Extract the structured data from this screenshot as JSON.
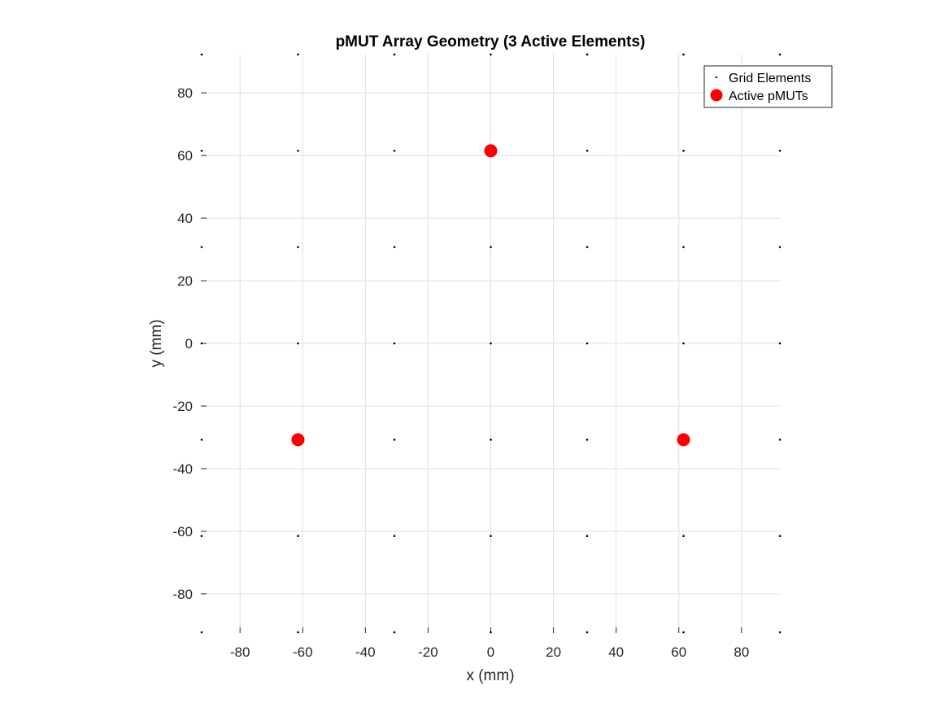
{
  "chart_data": {
    "type": "scatter",
    "title": "pMUT Array Geometry (3 Active Elements)",
    "xlabel": "x (mm)",
    "ylabel": "y (mm)",
    "xlim": [
      -92.5,
      92.5
    ],
    "ylim": [
      -92.5,
      92.5
    ],
    "xticks": [
      -80,
      -60,
      -40,
      -20,
      0,
      20,
      40,
      60,
      80
    ],
    "yticks": [
      -80,
      -60,
      -40,
      -20,
      0,
      20,
      40,
      60,
      80
    ],
    "xtick_labels": [
      "-80",
      "-60",
      "-40",
      "-20",
      "0",
      "20",
      "40",
      "60",
      "80"
    ],
    "ytick_labels": [
      "-80",
      "-60",
      "-40",
      "-20",
      "0",
      "20",
      "40",
      "60",
      "80"
    ],
    "grid": true,
    "legend_position": "top-right",
    "series": [
      {
        "name": "Grid Elements",
        "marker": "dot",
        "color": "#000000",
        "x_values": [
          -92.25,
          -61.5,
          -30.75,
          0,
          30.75,
          61.5,
          92.25
        ],
        "y_values": [
          -92.25,
          -61.5,
          -30.75,
          0,
          30.75,
          61.5,
          92.25
        ]
      },
      {
        "name": "Active pMUTs",
        "marker": "circle",
        "color": "#ff0000",
        "points": [
          {
            "x": 0,
            "y": 61.5
          },
          {
            "x": -61.5,
            "y": -30.75
          },
          {
            "x": 61.5,
            "y": -30.75
          }
        ]
      }
    ]
  }
}
